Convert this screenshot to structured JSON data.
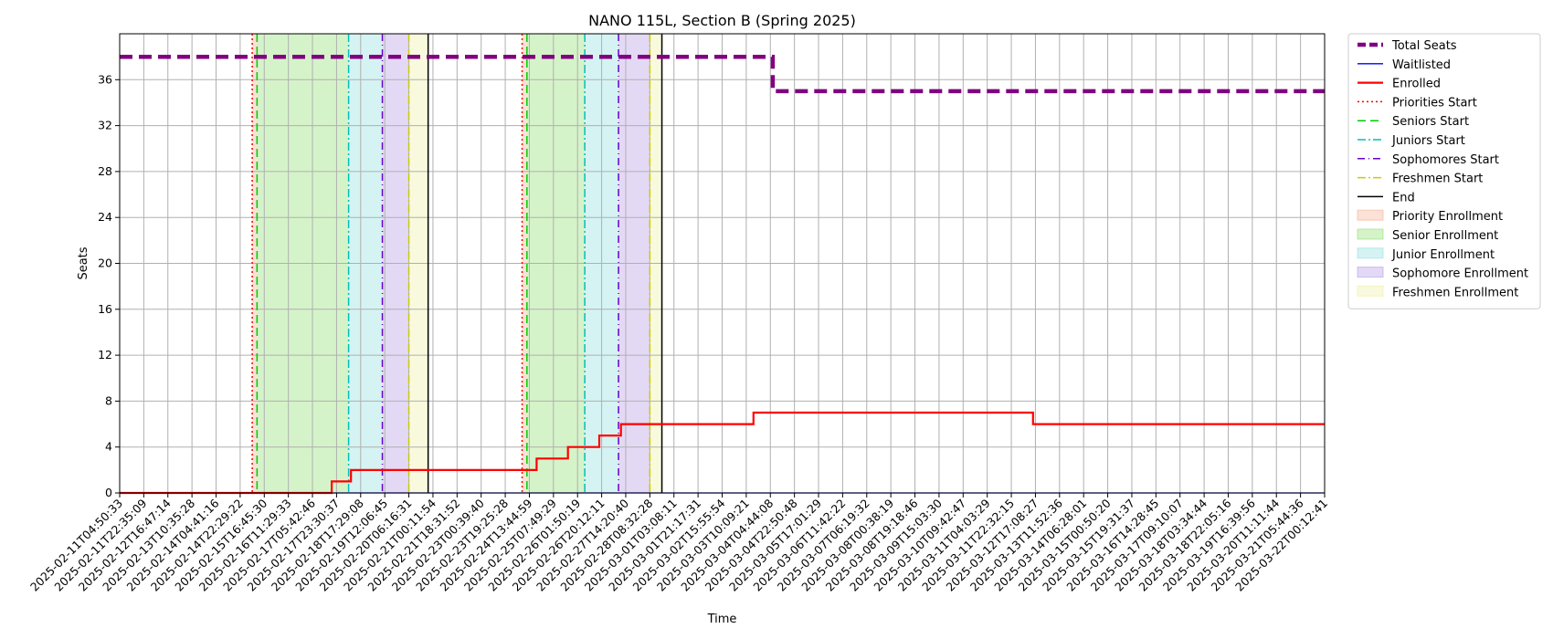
{
  "chart_data": {
    "type": "line",
    "title": "NANO 115L, Section B (Spring 2025)",
    "xlabel": "Time",
    "ylabel": "Seats",
    "ylim": [
      0,
      40
    ],
    "yticks": [
      0,
      4,
      8,
      12,
      16,
      20,
      24,
      28,
      32,
      36
    ],
    "grid": true,
    "legend_position": "outside-top-right",
    "x_ticks": [
      "2025-02-11T04:50:33",
      "2025-02-11T22:35:09",
      "2025-02-12T16:47:14",
      "2025-02-13T10:35:28",
      "2025-02-14T04:41:16",
      "2025-02-14T22:29:22",
      "2025-02-15T16:45:30",
      "2025-02-16T11:29:33",
      "2025-02-17T05:42:46",
      "2025-02-17T23:30:37",
      "2025-02-18T17:29:08",
      "2025-02-19T12:06:45",
      "2025-02-20T06:16:31",
      "2025-02-21T00:11:54",
      "2025-02-21T18:31:52",
      "2025-02-23T00:39:40",
      "2025-02-23T19:25:28",
      "2025-02-24T13:44:59",
      "2025-02-25T07:49:29",
      "2025-02-26T01:50:19",
      "2025-02-26T20:12:11",
      "2025-02-27T14:20:40",
      "2025-02-28T08:32:28",
      "2025-03-01T03:08:11",
      "2025-03-01T21:17:31",
      "2025-03-02T15:55:54",
      "2025-03-03T10:09:21",
      "2025-03-04T04:44:08",
      "2025-03-04T22:50:48",
      "2025-03-05T17:01:29",
      "2025-03-06T11:42:22",
      "2025-03-07T06:19:32",
      "2025-03-08T00:38:19",
      "2025-03-08T19:18:46",
      "2025-03-09T15:03:30",
      "2025-03-10T09:42:47",
      "2025-03-11T04:03:29",
      "2025-03-11T22:32:15",
      "2025-03-12T17:08:27",
      "2025-03-13T11:52:36",
      "2025-03-14T06:28:01",
      "2025-03-15T00:50:20",
      "2025-03-15T19:31:37",
      "2025-03-16T14:28:45",
      "2025-03-17T09:10:07",
      "2025-03-18T03:34:44",
      "2025-03-18T22:05:16",
      "2025-03-19T16:39:56",
      "2025-03-20T11:11:44",
      "2025-03-21T05:44:36",
      "2025-03-22T00:12:41"
    ],
    "series": [
      {
        "name": "Total Seats",
        "color": "#800080",
        "style": "dashed",
        "steps": [
          [
            0,
            38
          ],
          [
            27.1,
            38
          ],
          [
            27.1,
            35
          ],
          [
            50.0,
            35
          ]
        ]
      },
      {
        "name": "Waitlisted",
        "color": "#0000ff",
        "style": "solid",
        "steps": [
          [
            0,
            0
          ],
          [
            50.0,
            0
          ]
        ]
      },
      {
        "name": "Enrolled",
        "color": "#ff0000",
        "style": "solid",
        "steps": [
          [
            0,
            0
          ],
          [
            8.8,
            0
          ],
          [
            8.8,
            1
          ],
          [
            9.6,
            1
          ],
          [
            9.6,
            2
          ],
          [
            17.3,
            2
          ],
          [
            17.3,
            3
          ],
          [
            18.6,
            3
          ],
          [
            18.6,
            4
          ],
          [
            19.9,
            4
          ],
          [
            19.9,
            5
          ],
          [
            20.8,
            5
          ],
          [
            20.8,
            6
          ],
          [
            26.3,
            6
          ],
          [
            26.3,
            7
          ],
          [
            37.9,
            7
          ],
          [
            37.9,
            6
          ],
          [
            50.0,
            6
          ]
        ]
      }
    ],
    "markers": [
      {
        "name": "Priorities Start",
        "color": "#ff0000",
        "style": "dotted",
        "x": [
          5.5,
          16.7
        ]
      },
      {
        "name": "Seniors Start",
        "color": "#00cc00",
        "style": "dashed",
        "x": [
          5.7,
          16.9
        ]
      },
      {
        "name": "Juniors Start",
        "color": "#00bfbf",
        "style": "dashdot",
        "x": [
          9.5,
          19.3
        ]
      },
      {
        "name": "Sophomores Start",
        "color": "#6600cc",
        "style": "loosedashdot",
        "x": [
          10.9,
          20.7
        ]
      },
      {
        "name": "Freshmen Start",
        "color": "#cccc00",
        "style": "dashdot",
        "x": [
          12.0,
          22.0
        ]
      },
      {
        "name": "End",
        "color": "#000000",
        "style": "solid",
        "x": [
          12.8,
          22.5
        ]
      }
    ],
    "spans": [
      {
        "name": "Priority Enrollment",
        "color": "#f4a582",
        "ranges": [
          [
            5.5,
            5.7
          ],
          [
            16.7,
            16.9
          ]
        ]
      },
      {
        "name": "Senior Enrollment",
        "color": "#7fdc5a",
        "ranges": [
          [
            5.7,
            9.5
          ],
          [
            16.9,
            19.3
          ]
        ]
      },
      {
        "name": "Junior Enrollment",
        "color": "#7fdcdc",
        "ranges": [
          [
            9.5,
            10.9
          ],
          [
            19.3,
            20.7
          ]
        ]
      },
      {
        "name": "Sophomore Enrollment",
        "color": "#a98be0",
        "ranges": [
          [
            10.9,
            12.0
          ],
          [
            20.7,
            22.0
          ]
        ]
      },
      {
        "name": "Freshmen Enrollment",
        "color": "#eeee99",
        "ranges": [
          [
            12.0,
            12.8
          ],
          [
            22.0,
            22.5
          ]
        ]
      }
    ]
  }
}
